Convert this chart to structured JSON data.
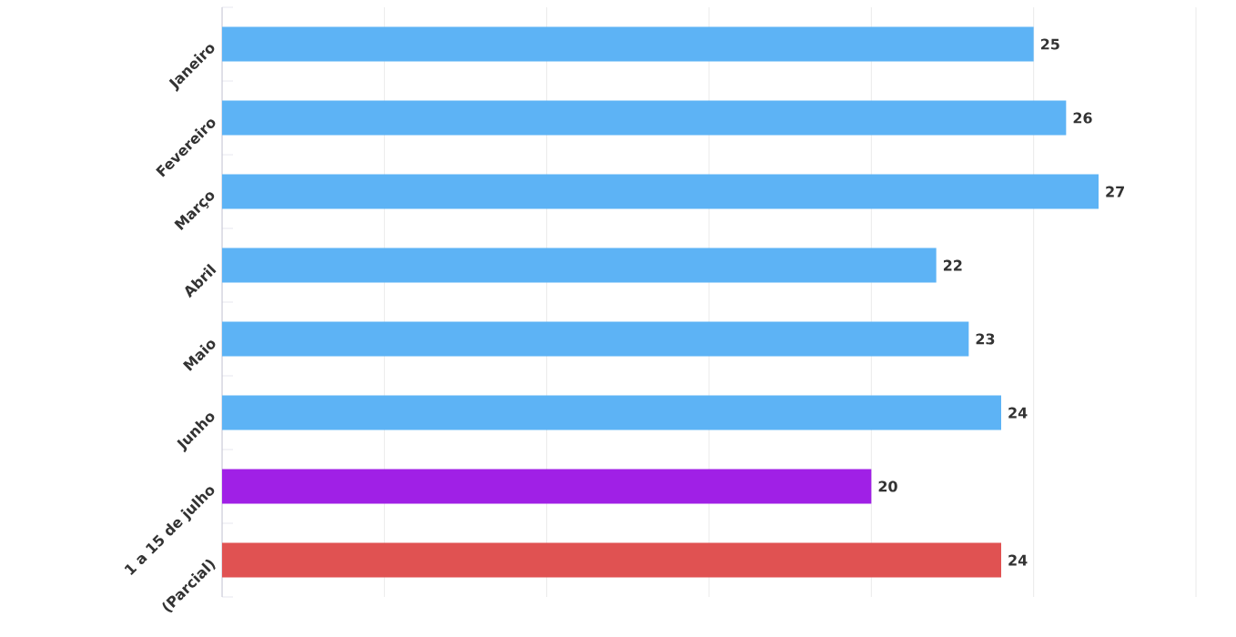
{
  "chart_data": {
    "type": "bar",
    "orientation": "horizontal",
    "categories": [
      "Janeiro",
      "Fevereiro",
      "Março",
      "Abril",
      "Maio",
      "Junho",
      "1 a 15 de julho",
      "(Parcial)"
    ],
    "values": [
      25,
      26,
      27,
      22,
      23,
      24,
      20,
      24
    ],
    "colors": [
      "#5db3f5",
      "#5db3f5",
      "#5db3f5",
      "#5db3f5",
      "#5db3f5",
      "#5db3f5",
      "#a020e6",
      "#e05252"
    ],
    "xticks": [
      {
        "value": 0,
        "label": null
      },
      {
        "value": 5,
        "label": null
      },
      {
        "value": 10,
        "label": null
      },
      {
        "value": 15,
        "label": null
      },
      {
        "value": 20,
        "label": null
      },
      {
        "value": 25,
        "label": null
      },
      {
        "value": 30,
        "label": null
      }
    ],
    "tick_labels": "y",
    "grid": "x",
    "data_labels": true
  }
}
